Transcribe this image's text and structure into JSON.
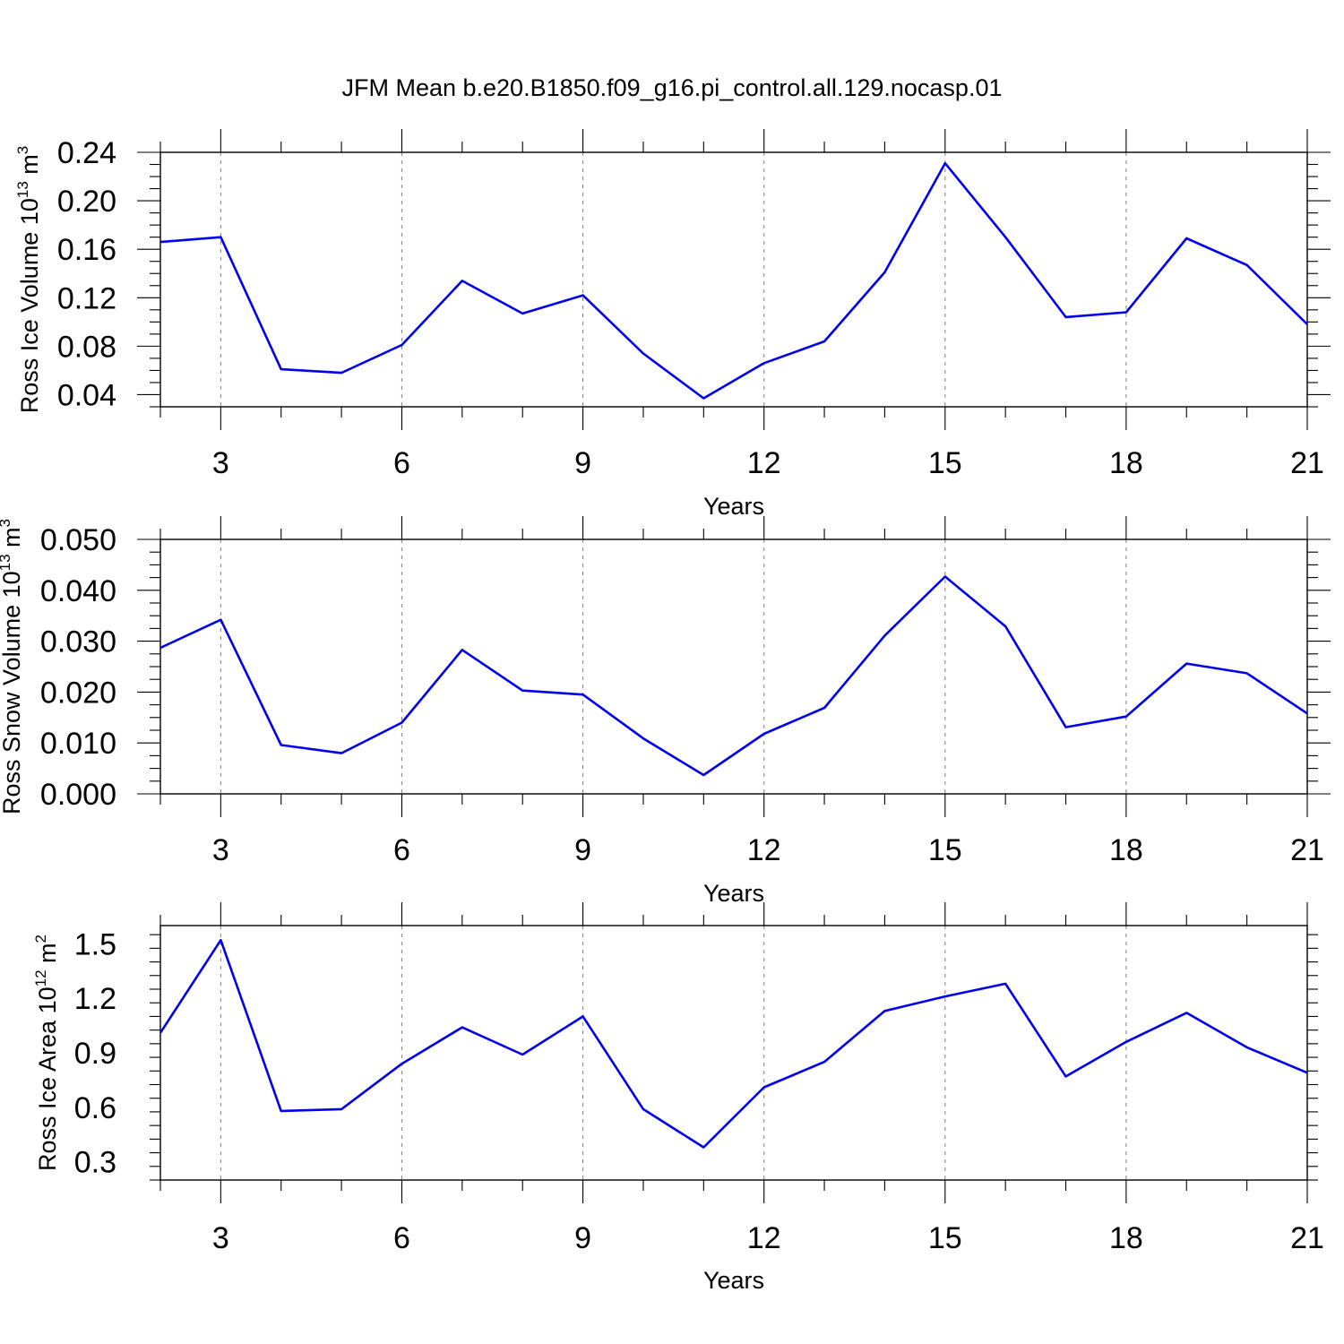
{
  "title": "JFM Mean b.e20.B1850.f09_g16.pi_control.all.129.nocasp.01",
  "colors": {
    "series": "#0000ee",
    "axis": "#000000",
    "grid": "#888888"
  },
  "chart_data": [
    {
      "type": "line",
      "xlabel": "Years",
      "ylabel": {
        "text": "Ross Ice Volume 10",
        "exp": "13",
        "unit": " m",
        "unit_exp": "3"
      },
      "xlim": [
        2,
        21
      ],
      "ylim": [
        0.03,
        0.24
      ],
      "xticks": [
        "3",
        "6",
        "9",
        "12",
        "15",
        "18",
        "21"
      ],
      "yticks": [
        "0.04",
        "0.08",
        "0.12",
        "0.16",
        "0.20",
        "0.24"
      ],
      "grid": "vertical dashed at major x ticks",
      "x": [
        2,
        3,
        4,
        5,
        6,
        7,
        8,
        9,
        10,
        11,
        12,
        13,
        14,
        15,
        16,
        17,
        18,
        19,
        20,
        21
      ],
      "values": [
        0.166,
        0.17,
        0.061,
        0.058,
        0.081,
        0.134,
        0.107,
        0.122,
        0.074,
        0.037,
        0.066,
        0.084,
        0.141,
        0.231,
        0.17,
        0.104,
        0.108,
        0.169,
        0.147,
        0.098
      ]
    },
    {
      "type": "line",
      "xlabel": "Years",
      "ylabel": {
        "text": "Ross Snow Volume 10",
        "exp": "13",
        "unit": " m",
        "unit_exp": "3"
      },
      "xlim": [
        2,
        21
      ],
      "ylim": [
        0.0,
        0.05
      ],
      "xticks": [
        "3",
        "6",
        "9",
        "12",
        "15",
        "18",
        "21"
      ],
      "yticks": [
        "0.000",
        "0.010",
        "0.020",
        "0.030",
        "0.040",
        "0.050"
      ],
      "grid": "vertical dashed at major x ticks",
      "x": [
        2,
        3,
        4,
        5,
        6,
        7,
        8,
        9,
        10,
        11,
        12,
        13,
        14,
        15,
        16,
        17,
        18,
        19,
        20,
        21
      ],
      "values": [
        0.0287,
        0.0342,
        0.0096,
        0.008,
        0.014,
        0.0283,
        0.0203,
        0.0195,
        0.0109,
        0.0037,
        0.0118,
        0.0169,
        0.0311,
        0.0427,
        0.0329,
        0.0131,
        0.0152,
        0.0256,
        0.0237,
        0.0158
      ]
    },
    {
      "type": "line",
      "xlabel": "Years",
      "ylabel": {
        "text": "Ross Ice Area 10",
        "exp": "12",
        "unit": " m",
        "unit_exp": "2"
      },
      "xlim": [
        2,
        21
      ],
      "ylim": [
        0.2,
        1.6
      ],
      "xticks": [
        "3",
        "6",
        "9",
        "12",
        "15",
        "18",
        "21"
      ],
      "yticks": [
        "0.3",
        "0.6",
        "0.9",
        "1.2",
        "1.5"
      ],
      "grid": "vertical dashed at major x ticks",
      "x": [
        2,
        3,
        4,
        5,
        6,
        7,
        8,
        9,
        10,
        11,
        12,
        13,
        14,
        15,
        16,
        17,
        18,
        19,
        20,
        21
      ],
      "values": [
        1.01,
        1.52,
        0.58,
        0.59,
        0.84,
        1.04,
        0.89,
        1.1,
        0.59,
        0.38,
        0.71,
        0.85,
        1.13,
        1.21,
        1.28,
        0.77,
        0.96,
        1.12,
        0.93,
        0.79
      ]
    }
  ]
}
